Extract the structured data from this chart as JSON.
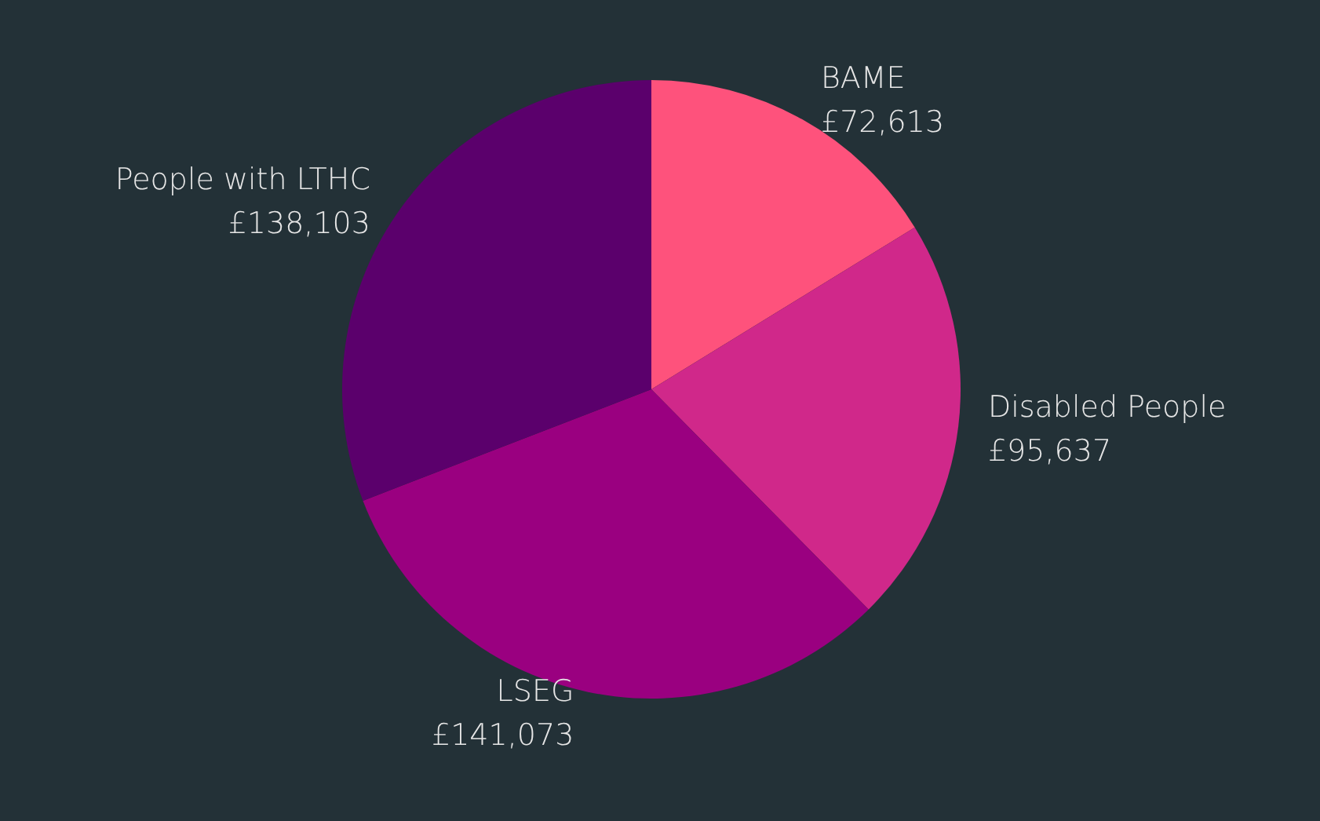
{
  "chart_data": {
    "type": "pie",
    "categories": [
      "BAME",
      "Disabled People",
      "LSEG",
      "People with LTHC"
    ],
    "values": [
      72613,
      95637,
      141073,
      138103
    ],
    "value_labels": [
      "£72,613",
      "£95,637",
      "£141,073",
      "£138,103"
    ],
    "colors": [
      "#fe527c",
      "#d0288a",
      "#9a0080",
      "#5b006c"
    ]
  }
}
